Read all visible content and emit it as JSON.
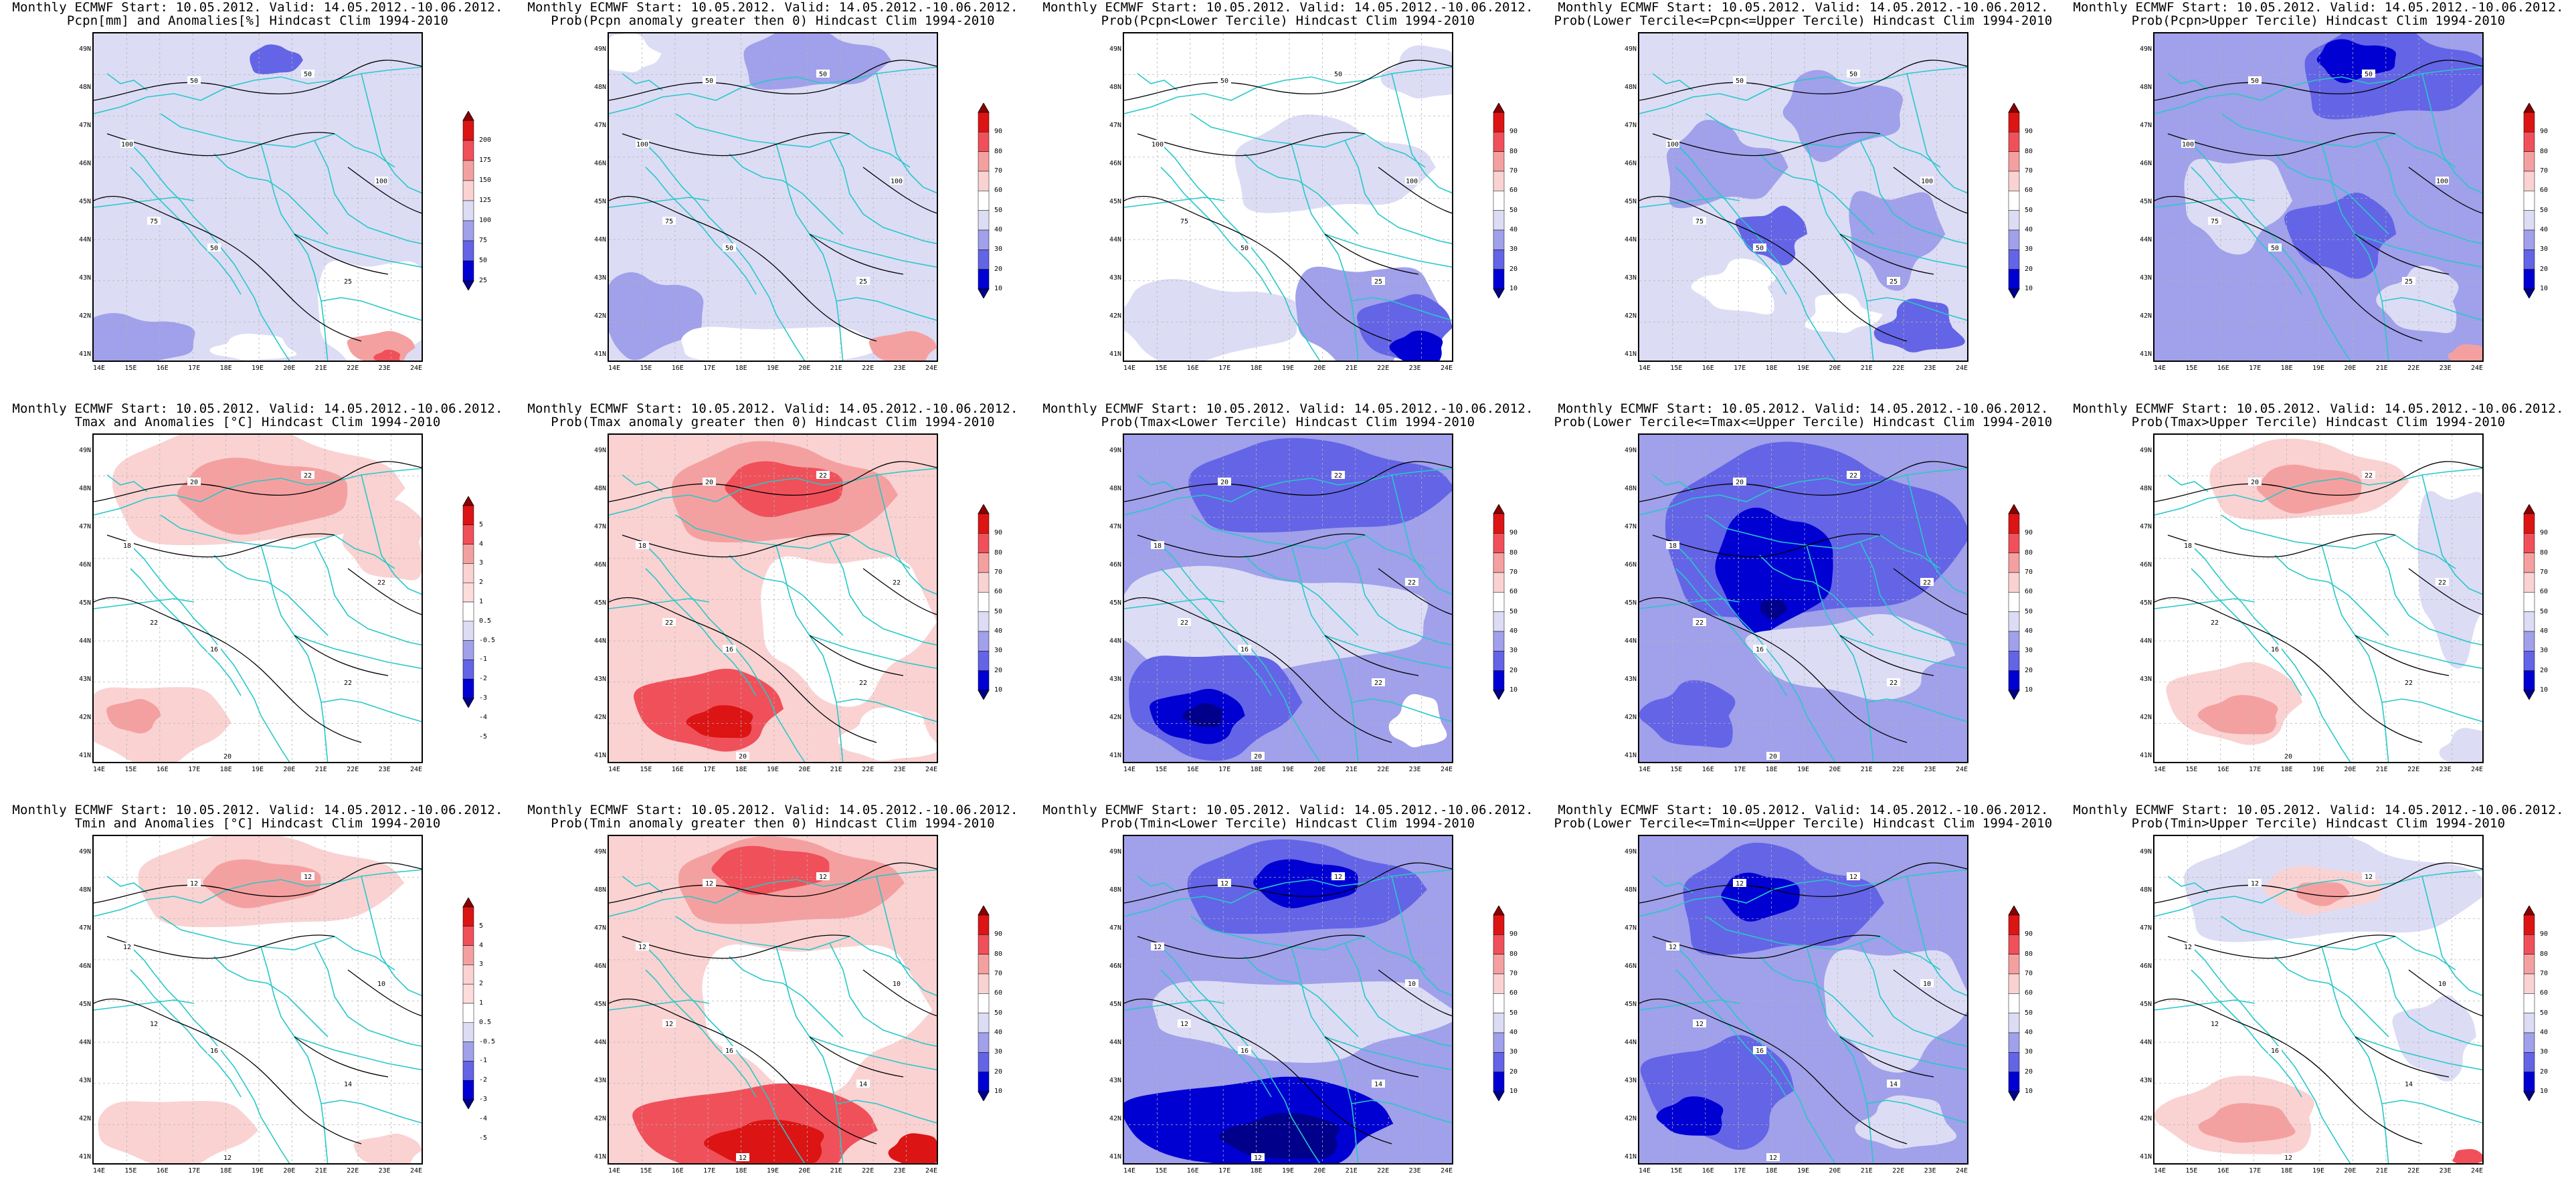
{
  "panels": [
    {
      "title1": "Monthly ECMWF Start: 10.05.2012. Valid: 14.05.2012.-10.06.2012.",
      "title2": "Pcpn[mm] and Anomalies[%] Hindcast Clim 1994-2010",
      "var": "Pcpn",
      "kind": "anom",
      "scale": "pcpn",
      "contours": [
        "50",
        "50",
        "100",
        "100",
        "75",
        "50",
        "25"
      ]
    },
    {
      "title1": "Monthly ECMWF Start: 10.05.2012. Valid: 14.05.2012.-10.06.2012.",
      "title2": "Prob(Pcpn anomaly greater then 0) Hindcast Clim 1994-2010",
      "var": "Pcpn",
      "kind": "pgt0",
      "scale": "prob",
      "contours": [
        "50",
        "50",
        "100",
        "100",
        "75",
        "50",
        "25"
      ]
    },
    {
      "title1": "Monthly ECMWF Start: 10.05.2012. Valid: 14.05.2012.-10.06.2012.",
      "title2": "Prob(Pcpn<Lower Tercile) Hindcast Clim 1994-2010",
      "var": "Pcpn",
      "kind": "low",
      "scale": "prob",
      "contours": [
        "50",
        "50",
        "100",
        "100",
        "75",
        "50",
        "25"
      ]
    },
    {
      "title1": "Monthly ECMWF Start: 10.05.2012. Valid: 14.05.2012.-10.06.2012.",
      "title2": "Prob(Lower Tercile<=Pcpn<=Upper Tercile) Hindcast Clim 1994-2010",
      "var": "Pcpn",
      "kind": "mid",
      "scale": "prob",
      "contours": [
        "50",
        "50",
        "100",
        "100",
        "75",
        "50",
        "25"
      ]
    },
    {
      "title1": "Monthly ECMWF Start: 10.05.2012. Valid: 14.05.2012.-10.06.2012.",
      "title2": "Prob(Pcpn>Upper Tercile) Hindcast Clim 1994-2010",
      "var": "Pcpn",
      "kind": "up",
      "scale": "prob",
      "contours": [
        "50",
        "50",
        "100",
        "100",
        "75",
        "50",
        "25"
      ]
    },
    {
      "title1": "Monthly ECMWF Start: 10.05.2012. Valid: 14.05.2012.-10.06.2012.",
      "title2": "Tmax and Anomalies [°C] Hindcast Clim 1994-2010",
      "var": "Tmax",
      "kind": "anom",
      "scale": "temp",
      "contours": [
        "20",
        "22",
        "18",
        "22",
        "22",
        "16",
        "22",
        "20"
      ]
    },
    {
      "title1": "Monthly ECMWF Start: 10.05.2012. Valid: 14.05.2012.-10.06.2012.",
      "title2": "Prob(Tmax anomaly greater then 0) Hindcast Clim 1994-2010",
      "var": "Tmax",
      "kind": "pgt0",
      "scale": "prob",
      "contours": [
        "20",
        "22",
        "18",
        "22",
        "22",
        "16",
        "22",
        "20"
      ]
    },
    {
      "title1": "Monthly ECMWF Start: 10.05.2012. Valid: 14.05.2012.-10.06.2012.",
      "title2": "Prob(Tmax<Lower Tercile) Hindcast Clim 1994-2010",
      "var": "Tmax",
      "kind": "low",
      "scale": "prob",
      "contours": [
        "20",
        "22",
        "18",
        "22",
        "22",
        "16",
        "22",
        "20"
      ]
    },
    {
      "title1": "Monthly ECMWF Start: 10.05.2012. Valid: 14.05.2012.-10.06.2012.",
      "title2": "Prob(Lower Tercile<=Tmax<=Upper Tercile) Hindcast Clim 1994-2010",
      "var": "Tmax",
      "kind": "mid",
      "scale": "prob",
      "contours": [
        "20",
        "22",
        "18",
        "22",
        "22",
        "16",
        "22",
        "20"
      ]
    },
    {
      "title1": "Monthly ECMWF Start: 10.05.2012. Valid: 14.05.2012.-10.06.2012.",
      "title2": "Prob(Tmax>Upper Tercile) Hindcast Clim 1994-2010",
      "var": "Tmax",
      "kind": "up",
      "scale": "prob",
      "contours": [
        "20",
        "22",
        "18",
        "22",
        "22",
        "16",
        "22",
        "20"
      ]
    },
    {
      "title1": "Monthly ECMWF Start: 10.05.2012. Valid: 14.05.2012.-10.06.2012.",
      "title2": "Tmin and Anomalies [°C] Hindcast Clim 1994-2010",
      "var": "Tmin",
      "kind": "anom",
      "scale": "temp",
      "contours": [
        "12",
        "12",
        "12",
        "10",
        "12",
        "16",
        "14",
        "12"
      ]
    },
    {
      "title1": "Monthly ECMWF Start: 10.05.2012. Valid: 14.05.2012.-10.06.2012.",
      "title2": "Prob(Tmin anomaly greater then 0) Hindcast Clim 1994-2010",
      "var": "Tmin",
      "kind": "pgt0",
      "scale": "prob",
      "contours": [
        "12",
        "12",
        "12",
        "10",
        "12",
        "16",
        "14",
        "12"
      ]
    },
    {
      "title1": "Monthly ECMWF Start: 10.05.2012. Valid: 14.05.2012.-10.06.2012.",
      "title2": "Prob(Tmin<Lower Tercile) Hindcast Clim 1994-2010",
      "var": "Tmin",
      "kind": "low",
      "scale": "prob",
      "contours": [
        "12",
        "12",
        "12",
        "10",
        "12",
        "16",
        "14",
        "12"
      ]
    },
    {
      "title1": "Monthly ECMWF Start: 10.05.2012. Valid: 14.05.2012.-10.06.2012.",
      "title2": "Prob(Lower Tercile<=Tmin<=Upper Tercile) Hindcast Clim 1994-2010",
      "var": "Tmin",
      "kind": "mid",
      "scale": "prob",
      "contours": [
        "12",
        "12",
        "12",
        "10",
        "12",
        "16",
        "14",
        "12"
      ]
    },
    {
      "title1": "Monthly ECMWF Start: 10.05.2012. Valid: 14.05.2012.-10.06.2012.",
      "title2": "Prob(Tmin>Upper Tercile) Hindcast Clim 1994-2010",
      "var": "Tmin",
      "kind": "up",
      "scale": "prob",
      "contours": [
        "12",
        "12",
        "12",
        "10",
        "12",
        "16",
        "14",
        "12"
      ]
    }
  ],
  "axes": {
    "lat_labels": [
      "49N",
      "48N",
      "47N",
      "46N",
      "45N",
      "44N",
      "43N",
      "42N",
      "41N"
    ],
    "lon_labels": [
      "14E",
      "15E",
      "16E",
      "17E",
      "18E",
      "19E",
      "20E",
      "21E",
      "22E",
      "23E",
      "24E"
    ]
  },
  "colorbars": {
    "pcpn": {
      "labels": [
        "200",
        "175",
        "150",
        "125",
        "100",
        "75",
        "50",
        "25"
      ],
      "colors": [
        "#8b0000",
        "#dc1414",
        "#f0505a",
        "#f5a0a0",
        "#fad2d2",
        "#dcdcf5",
        "#a0a0eb",
        "#6464e6",
        "#0000d2",
        "#00008b"
      ]
    },
    "prob": {
      "labels": [
        "90",
        "80",
        "70",
        "60",
        "50",
        "40",
        "30",
        "20",
        "10"
      ],
      "colors": [
        "#8b0000",
        "#dc1414",
        "#f0505a",
        "#f5a0a0",
        "#fad2d2",
        "#ffffff",
        "#dcdcf5",
        "#a0a0eb",
        "#6464e6",
        "#0000d2",
        "#00008b"
      ]
    },
    "temp": {
      "labels": [
        "5",
        "4",
        "3",
        "2",
        "1",
        "0.5",
        "-0.5",
        "-1",
        "-2",
        "-3",
        "-4",
        "-5"
      ],
      "colors": [
        "#8b0000",
        "#dc1414",
        "#f0505a",
        "#f5a0a0",
        "#fad2d2",
        "#ffdcdc",
        "#ffffff",
        "#dcdcf5",
        "#a0a0eb",
        "#6464e6",
        "#0000d2",
        "#00008b"
      ]
    }
  },
  "colors": {
    "coast": "#28c8c8",
    "contour": "#000000",
    "frame": "#000000"
  }
}
